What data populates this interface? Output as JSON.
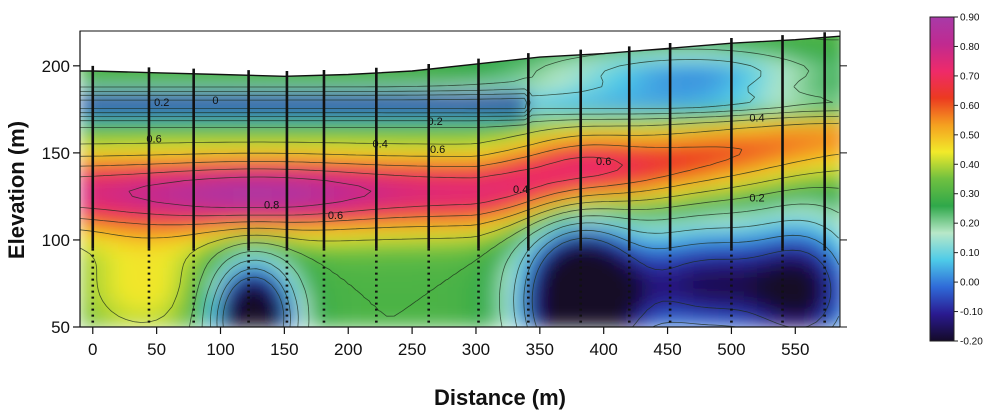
{
  "chart_data": {
    "type": "heatmap",
    "title": "",
    "xlabel": "Distance (m)",
    "ylabel": "Elevation (m)",
    "xlim": [
      -10,
      585
    ],
    "ylim": [
      50,
      220
    ],
    "x_ticks": [
      "0",
      "50",
      "100",
      "150",
      "200",
      "250",
      "300",
      "350",
      "400",
      "450",
      "500",
      "550"
    ],
    "y_ticks": [
      "50",
      "100",
      "150",
      "200"
    ],
    "colorbar": {
      "range": [
        -0.2,
        0.9
      ],
      "tick_labels": [
        "0.90",
        "0.80",
        "0.70",
        "0.60",
        "0.50",
        "0.40",
        "0.30",
        "0.20",
        "0.10",
        "0.00",
        "-0.10",
        "-0.20"
      ],
      "colors": [
        "#140a28",
        "#2a1a90",
        "#2f6ad8",
        "#4ecbe8",
        "#b8e8c8",
        "#2fa84a",
        "#6fc040",
        "#f2ea2a",
        "#f5a020",
        "#ec3a20",
        "#ee2a6a",
        "#c02a90",
        "#a83aa8"
      ]
    },
    "surface": {
      "x": [
        -10,
        0,
        50,
        100,
        150,
        200,
        250,
        300,
        350,
        400,
        450,
        500,
        550,
        585
      ],
      "elevation": [
        197,
        197,
        196,
        195,
        194,
        195,
        197,
        201,
        205,
        207,
        210,
        213,
        215,
        217
      ]
    },
    "boreholes": [
      0,
      44,
      79,
      122,
      152,
      181,
      222,
      263,
      302,
      341,
      382,
      420,
      452,
      500,
      540,
      573
    ],
    "contour_labels": [
      {
        "text": "0.2",
        "x": 54,
        "y": 177
      },
      {
        "text": "0",
        "x": 96,
        "y": 178
      },
      {
        "text": "0.6",
        "x": 48,
        "y": 156
      },
      {
        "text": "0.8",
        "x": 140,
        "y": 118
      },
      {
        "text": "0.6",
        "x": 190,
        "y": 112
      },
      {
        "text": "0.4",
        "x": 225,
        "y": 153
      },
      {
        "text": "0.2",
        "x": 268,
        "y": 166
      },
      {
        "text": "0.6",
        "x": 270,
        "y": 150
      },
      {
        "text": "0.4",
        "x": 335,
        "y": 127
      },
      {
        "text": "0.6",
        "x": 400,
        "y": 143
      },
      {
        "text": "0.4",
        "x": 520,
        "y": 168
      },
      {
        "text": "0.2",
        "x": 520,
        "y": 122
      }
    ]
  }
}
